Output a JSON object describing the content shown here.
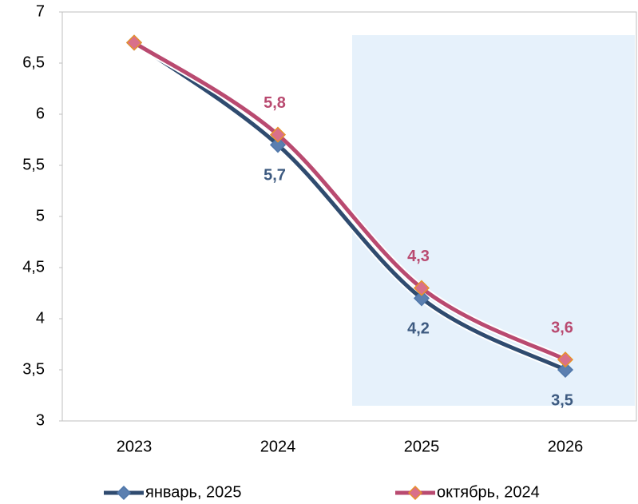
{
  "chart_data": {
    "type": "line",
    "categories": [
      "2023",
      "2024",
      "2025",
      "2026"
    ],
    "series": [
      {
        "name": "январь, 2025",
        "color": "#2f4b6f",
        "values": [
          6.7,
          5.7,
          4.2,
          3.5
        ],
        "value_labels": [
          null,
          "5,7",
          "4,2",
          "3,5"
        ]
      },
      {
        "name": "октябрь, 2024",
        "color": "#b94a70",
        "values": [
          6.7,
          5.8,
          4.3,
          3.6
        ],
        "value_labels": [
          null,
          "5,8",
          "4,3",
          "3,6"
        ]
      }
    ],
    "ylim": [
      3,
      7
    ],
    "yticks": [
      3,
      {
        "value": 3.5,
        "label": "3,5"
      },
      4,
      {
        "value": 4.5,
        "label": "4,5"
      },
      5,
      {
        "value": 5.5,
        "label": "5,5"
      },
      6,
      {
        "value": 6.5,
        "label": "6,5"
      },
      7
    ],
    "legend": "bottom"
  }
}
